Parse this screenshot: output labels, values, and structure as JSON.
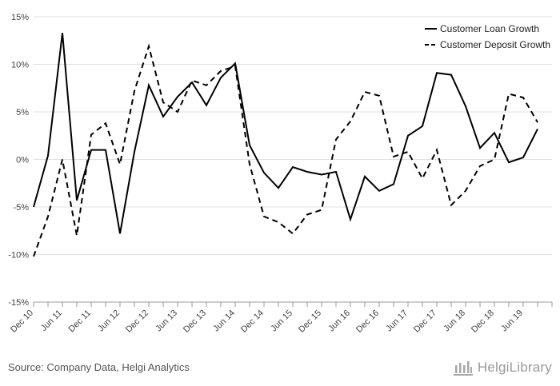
{
  "chart_data": {
    "type": "line",
    "title": "",
    "xlabel": "",
    "ylabel": "",
    "ylim": [
      -15,
      15
    ],
    "y_ticks": [
      -15,
      -10,
      -5,
      0,
      5,
      10,
      15
    ],
    "y_tick_labels": [
      "-15%",
      "-10%",
      "-5%",
      "0%",
      "5%",
      "10%",
      "15%"
    ],
    "x_tick_labels": [
      "Dec 10",
      "Jun 11",
      "Dec 11",
      "Jun 12",
      "Dec 12",
      "Jun 13",
      "Dec 13",
      "Jun 14",
      "Dec 14",
      "Jun 15",
      "Dec 15",
      "Jun 16",
      "Dec 16",
      "Jun 17",
      "Dec 17",
      "Jun 18",
      "Dec 18",
      "Jun 19"
    ],
    "x": [
      "Dec 10",
      "Mar 11",
      "Jun 11",
      "Sep 11",
      "Dec 11",
      "Mar 12",
      "Jun 12",
      "Sep 12",
      "Dec 12",
      "Mar 13",
      "Jun 13",
      "Sep 13",
      "Dec 13",
      "Mar 14",
      "Jun 14",
      "Sep 14",
      "Dec 14",
      "Mar 15",
      "Jun 15",
      "Sep 15",
      "Dec 15",
      "Mar 16",
      "Jun 16",
      "Sep 16",
      "Dec 16",
      "Mar 17",
      "Jun 17",
      "Sep 17",
      "Dec 17",
      "Mar 18",
      "Jun 18",
      "Sep 18",
      "Dec 18",
      "Mar 19",
      "Jun 19",
      "Sep 19",
      "Dec 19"
    ],
    "series": [
      {
        "name": "Customer Loan Growth",
        "style": "solid",
        "values": [
          -5.0,
          0.4,
          13.3,
          -4.3,
          1.0,
          1.0,
          -7.8,
          0.8,
          7.8,
          4.5,
          6.6,
          8.1,
          5.7,
          8.6,
          10.1,
          1.5,
          -1.4,
          -3.0,
          -0.8,
          -1.3,
          -1.6,
          -1.3,
          -6.3,
          -1.8,
          -3.3,
          -2.6,
          2.5,
          3.5,
          9.1,
          8.9,
          5.6,
          1.2,
          2.8,
          -0.3,
          0.2,
          3.2,
          null
        ]
      },
      {
        "name": "Customer Deposit Growth",
        "style": "dashed",
        "values": [
          -10.2,
          -6.0,
          0.0,
          -8.0,
          2.6,
          3.8,
          -0.5,
          7.2,
          11.9,
          6.0,
          5.0,
          8.3,
          7.8,
          9.3,
          9.8,
          -0.5,
          -6.0,
          -6.6,
          -7.8,
          -5.8,
          -5.3,
          2.1,
          4.0,
          7.1,
          6.7,
          0.3,
          0.8,
          -2.0,
          1.0,
          -4.8,
          -3.3,
          -0.7,
          0.0,
          6.9,
          6.5,
          3.9,
          null
        ]
      }
    ],
    "legend": "top-right",
    "grid": "horizontal",
    "colors": {
      "line": "#000000",
      "grid": "#e0e0e0",
      "axis": "#999999"
    }
  },
  "footer": {
    "source": "Source: Company Data, Helgi Analytics",
    "logo_text": "HelgiLibrary"
  }
}
